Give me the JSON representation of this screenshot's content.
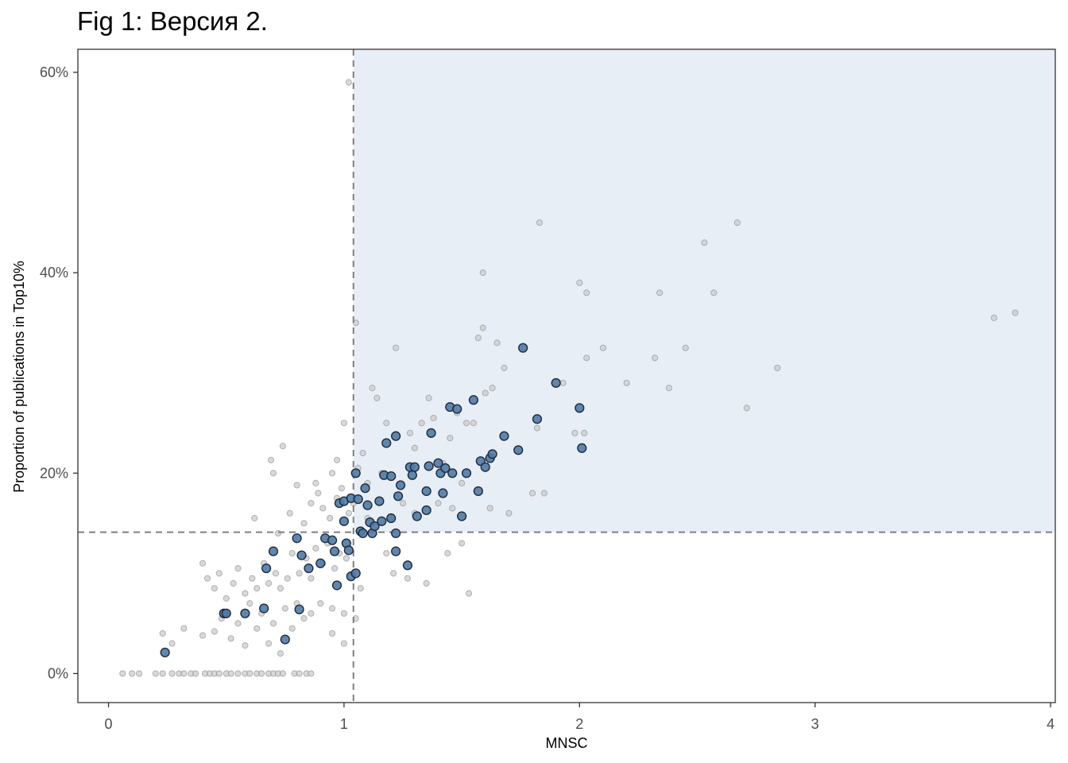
{
  "title": "Fig 1: Версия 2.",
  "chart_data": {
    "type": "scatter",
    "title": "Fig 1: Версия 2.",
    "xlabel": "MNSC",
    "ylabel": "Proportion of publications in Top10%",
    "xlim": [
      -0.13,
      4.02
    ],
    "ylim": [
      -0.029,
      0.623
    ],
    "x_ticks": [
      0,
      1,
      2,
      3,
      4
    ],
    "x_tick_labels": [
      "0",
      "1",
      "2",
      "3",
      "4"
    ],
    "y_ticks": [
      0,
      0.2,
      0.4,
      0.6
    ],
    "y_tick_labels": [
      "0%",
      "20%",
      "40%",
      "60%"
    ],
    "grid": false,
    "reference_lines": {
      "x": 1.04,
      "y": 0.141
    },
    "shaded_region": {
      "x_from": 1.04,
      "y_from": 0.141,
      "color": "#e8eef6"
    },
    "colors": {
      "background": "#cccccc",
      "highlight": "#4f7aa6",
      "highlight_stroke": "#1e2a3a",
      "shade": "#e8eef6",
      "reference": "#7f7f7f"
    },
    "series": [
      {
        "role": "background",
        "points": [
          [
            0.06,
            0
          ],
          [
            0.1,
            0
          ],
          [
            0.13,
            0
          ],
          [
            0.2,
            0
          ],
          [
            0.23,
            0
          ],
          [
            0.27,
            0
          ],
          [
            0.3,
            0
          ],
          [
            0.32,
            0
          ],
          [
            0.35,
            0
          ],
          [
            0.37,
            0
          ],
          [
            0.41,
            0
          ],
          [
            0.43,
            0
          ],
          [
            0.45,
            0
          ],
          [
            0.47,
            0
          ],
          [
            0.5,
            0
          ],
          [
            0.52,
            0
          ],
          [
            0.55,
            0
          ],
          [
            0.58,
            0
          ],
          [
            0.6,
            0
          ],
          [
            0.63,
            0
          ],
          [
            0.65,
            0
          ],
          [
            0.68,
            0
          ],
          [
            0.7,
            0
          ],
          [
            0.72,
            0
          ],
          [
            0.74,
            0
          ],
          [
            0.79,
            0
          ],
          [
            0.81,
            0
          ],
          [
            0.84,
            0
          ],
          [
            0.86,
            0
          ],
          [
            0.23,
            0.04
          ],
          [
            0.27,
            0.03
          ],
          [
            0.32,
            0.045
          ],
          [
            0.4,
            0.038
          ],
          [
            0.45,
            0.042
          ],
          [
            0.48,
            0.055
          ],
          [
            0.52,
            0.035
          ],
          [
            0.55,
            0.05
          ],
          [
            0.58,
            0.028
          ],
          [
            0.6,
            0.07
          ],
          [
            0.63,
            0.045
          ],
          [
            0.65,
            0.06
          ],
          [
            0.68,
            0.03
          ],
          [
            0.7,
            0.05
          ],
          [
            0.73,
            0.02
          ],
          [
            0.75,
            0.065
          ],
          [
            0.78,
            0.045
          ],
          [
            0.8,
            0.07
          ],
          [
            0.83,
            0.055
          ],
          [
            0.86,
            0.06
          ],
          [
            0.9,
            0.07
          ],
          [
            0.95,
            0.065
          ],
          [
            1.0,
            0.06
          ],
          [
            1.05,
            0.055
          ],
          [
            0.4,
            0.11
          ],
          [
            0.42,
            0.095
          ],
          [
            0.45,
            0.085
          ],
          [
            0.47,
            0.1
          ],
          [
            0.5,
            0.075
          ],
          [
            0.53,
            0.09
          ],
          [
            0.55,
            0.105
          ],
          [
            0.58,
            0.08
          ],
          [
            0.61,
            0.095
          ],
          [
            0.63,
            0.085
          ],
          [
            0.66,
            0.11
          ],
          [
            0.68,
            0.09
          ],
          [
            0.71,
            0.1
          ],
          [
            0.73,
            0.085
          ],
          [
            0.76,
            0.095
          ],
          [
            0.78,
            0.12
          ],
          [
            0.81,
            0.1
          ],
          [
            0.84,
            0.115
          ],
          [
            0.86,
            0.095
          ],
          [
            0.88,
            0.125
          ],
          [
            0.91,
            0.11
          ],
          [
            0.93,
            0.13
          ],
          [
            0.96,
            0.105
          ],
          [
            0.98,
            0.12
          ],
          [
            1.01,
            0.115
          ],
          [
            1.04,
            0.1
          ],
          [
            1.07,
            0.085
          ],
          [
            0.69,
            0.213
          ],
          [
            0.7,
            0.2
          ],
          [
            0.74,
            0.227
          ],
          [
            0.8,
            0.188
          ],
          [
            0.88,
            0.19
          ],
          [
            0.95,
            0.2
          ],
          [
            0.97,
            0.213
          ],
          [
            1.0,
            0.25
          ],
          [
            1.02,
            0.59
          ],
          [
            1.05,
            0.35
          ],
          [
            0.62,
            0.155
          ],
          [
            0.72,
            0.14
          ],
          [
            0.77,
            0.16
          ],
          [
            0.83,
            0.15
          ],
          [
            0.86,
            0.17
          ],
          [
            0.89,
            0.18
          ],
          [
            0.91,
            0.165
          ],
          [
            0.94,
            0.155
          ],
          [
            0.97,
            0.175
          ],
          [
            0.99,
            0.185
          ],
          [
            1.02,
            0.16
          ],
          [
            1.04,
            0.17
          ],
          [
            1.06,
            0.205
          ],
          [
            1.08,
            0.22
          ],
          [
            1.1,
            0.19
          ],
          [
            1.12,
            0.285
          ],
          [
            1.14,
            0.275
          ],
          [
            1.16,
            0.2
          ],
          [
            1.18,
            0.25
          ],
          [
            1.22,
            0.325
          ],
          [
            1.25,
            0.17
          ],
          [
            1.28,
            0.24
          ],
          [
            1.3,
            0.225
          ],
          [
            1.33,
            0.25
          ],
          [
            1.36,
            0.275
          ],
          [
            1.38,
            0.255
          ],
          [
            1.42,
            0.21
          ],
          [
            1.45,
            0.235
          ],
          [
            1.48,
            0.26
          ],
          [
            1.5,
            0.19
          ],
          [
            1.52,
            0.25
          ],
          [
            1.55,
            0.25
          ],
          [
            1.57,
            0.335
          ],
          [
            1.59,
            0.345
          ],
          [
            1.59,
            0.4
          ],
          [
            1.6,
            0.28
          ],
          [
            1.63,
            0.285
          ],
          [
            1.65,
            0.33
          ],
          [
            1.68,
            0.305
          ],
          [
            1.7,
            0.16
          ],
          [
            1.82,
            0.245
          ],
          [
            1.83,
            0.45
          ],
          [
            1.85,
            0.18
          ],
          [
            1.93,
            0.29
          ],
          [
            1.98,
            0.24
          ],
          [
            2.0,
            0.39
          ],
          [
            2.02,
            0.24
          ],
          [
            2.03,
            0.315
          ],
          [
            2.03,
            0.38
          ],
          [
            2.1,
            0.325
          ],
          [
            2.2,
            0.29
          ],
          [
            2.32,
            0.315
          ],
          [
            2.34,
            0.38
          ],
          [
            2.38,
            0.285
          ],
          [
            2.45,
            0.325
          ],
          [
            2.53,
            0.43
          ],
          [
            2.57,
            0.38
          ],
          [
            2.67,
            0.45
          ],
          [
            2.71,
            0.265
          ],
          [
            2.84,
            0.305
          ],
          [
            3.76,
            0.355
          ],
          [
            3.85,
            0.36
          ],
          [
            1.18,
            0.12
          ],
          [
            1.21,
            0.1
          ],
          [
            1.27,
            0.095
          ],
          [
            1.35,
            0.09
          ],
          [
            1.44,
            0.12
          ],
          [
            1.5,
            0.13
          ],
          [
            1.53,
            0.08
          ],
          [
            1.0,
            0.03
          ],
          [
            0.95,
            0.04
          ],
          [
            1.1,
            0.155
          ],
          [
            1.2,
            0.155
          ],
          [
            1.3,
            0.16
          ],
          [
            1.4,
            0.17
          ],
          [
            1.46,
            0.165
          ],
          [
            1.62,
            0.165
          ],
          [
            1.8,
            0.18
          ]
        ]
      },
      {
        "role": "highlight",
        "points": [
          [
            0.24,
            0.021
          ],
          [
            0.49,
            0.06
          ],
          [
            0.5,
            0.06
          ],
          [
            0.58,
            0.06
          ],
          [
            0.66,
            0.065
          ],
          [
            0.67,
            0.105
          ],
          [
            0.7,
            0.122
          ],
          [
            0.75,
            0.034
          ],
          [
            0.8,
            0.135
          ],
          [
            0.81,
            0.064
          ],
          [
            0.82,
            0.118
          ],
          [
            0.85,
            0.105
          ],
          [
            0.9,
            0.11
          ],
          [
            0.92,
            0.135
          ],
          [
            0.95,
            0.133
          ],
          [
            0.96,
            0.122
          ],
          [
            0.97,
            0.088
          ],
          [
            0.98,
            0.17
          ],
          [
            1.0,
            0.172
          ],
          [
            1.0,
            0.152
          ],
          [
            1.01,
            0.13
          ],
          [
            1.02,
            0.123
          ],
          [
            1.03,
            0.097
          ],
          [
            1.03,
            0.175
          ],
          [
            1.05,
            0.1
          ],
          [
            1.05,
            0.2
          ],
          [
            1.06,
            0.174
          ],
          [
            1.07,
            0.142
          ],
          [
            1.08,
            0.14
          ],
          [
            1.09,
            0.185
          ],
          [
            1.1,
            0.168
          ],
          [
            1.11,
            0.151
          ],
          [
            1.12,
            0.14
          ],
          [
            1.13,
            0.147
          ],
          [
            1.15,
            0.172
          ],
          [
            1.16,
            0.152
          ],
          [
            1.17,
            0.198
          ],
          [
            1.18,
            0.23
          ],
          [
            1.2,
            0.155
          ],
          [
            1.2,
            0.197
          ],
          [
            1.22,
            0.122
          ],
          [
            1.22,
            0.14
          ],
          [
            1.22,
            0.237
          ],
          [
            1.23,
            0.177
          ],
          [
            1.24,
            0.188
          ],
          [
            1.27,
            0.108
          ],
          [
            1.28,
            0.206
          ],
          [
            1.29,
            0.198
          ],
          [
            1.3,
            0.206
          ],
          [
            1.31,
            0.157
          ],
          [
            1.35,
            0.182
          ],
          [
            1.35,
            0.163
          ],
          [
            1.36,
            0.207
          ],
          [
            1.37,
            0.24
          ],
          [
            1.4,
            0.21
          ],
          [
            1.41,
            0.2
          ],
          [
            1.42,
            0.18
          ],
          [
            1.43,
            0.205
          ],
          [
            1.45,
            0.266
          ],
          [
            1.46,
            0.2
          ],
          [
            1.48,
            0.264
          ],
          [
            1.5,
            0.157
          ],
          [
            1.52,
            0.2
          ],
          [
            1.55,
            0.273
          ],
          [
            1.57,
            0.182
          ],
          [
            1.58,
            0.212
          ],
          [
            1.6,
            0.206
          ],
          [
            1.62,
            0.215
          ],
          [
            1.63,
            0.219
          ],
          [
            1.68,
            0.237
          ],
          [
            1.74,
            0.223
          ],
          [
            1.76,
            0.325
          ],
          [
            1.82,
            0.254
          ],
          [
            1.9,
            0.29
          ],
          [
            2.0,
            0.265
          ],
          [
            2.01,
            0.225
          ]
        ]
      }
    ]
  }
}
